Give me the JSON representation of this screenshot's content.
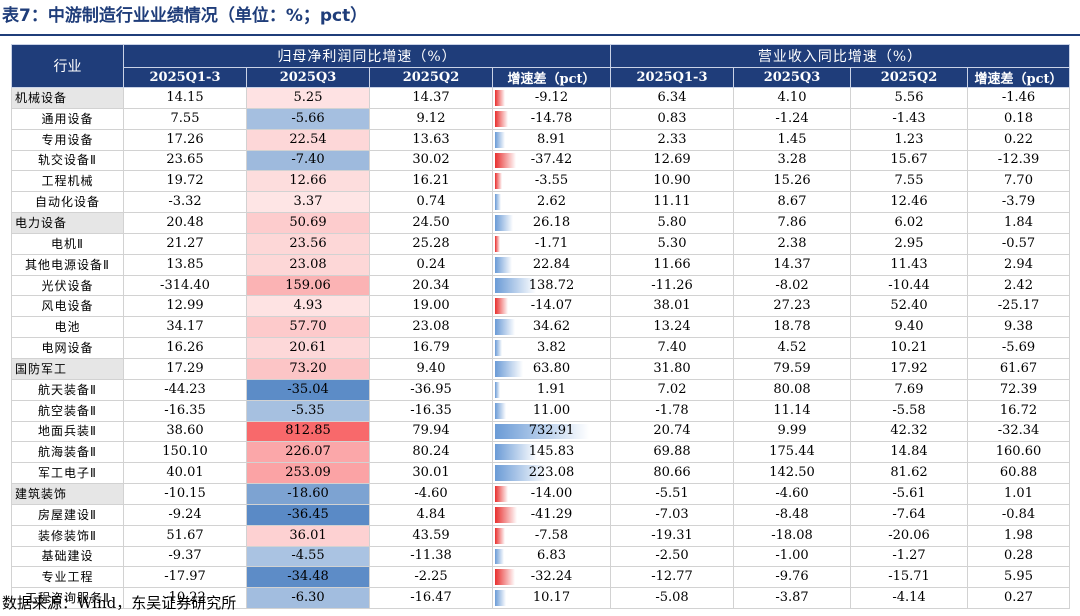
{
  "title": "表7：中游制造行业业绩情况（单位：%；pct）",
  "source": "数据来源：Wind，东吴证券研究所",
  "header": {
    "industry": "行业",
    "group1": "归母净利润同比增速（%）",
    "group2": "营业收入同比增速（%）",
    "columns": [
      "2025Q1-3",
      "2025Q3",
      "2025Q2",
      "增速差（pct）",
      "2025Q1-3",
      "2025Q3",
      "2025Q2",
      "增速差（pct）"
    ]
  },
  "colors": {
    "header_bg": "#1f3d7a",
    "level1_bg": "#e6e6e6",
    "positive_heat": "#f8696b",
    "negative_heat": "#5a8ac6",
    "pos_bar": "#6b9bd6",
    "neg_bar": "#e8302f"
  },
  "rows": [
    {
      "name": "机械设备",
      "level": 1,
      "np_q13": "14.15",
      "np_q3": "5.25",
      "np_q2": "14.37",
      "np_diff": "-9.12",
      "rev_q13": "6.34",
      "rev_q3": "4.10",
      "rev_q2": "5.56",
      "rev_diff": "-1.46"
    },
    {
      "name": "通用设备",
      "level": 2,
      "np_q13": "7.55",
      "np_q3": "-5.66",
      "np_q2": "9.12",
      "np_diff": "-14.78",
      "rev_q13": "0.83",
      "rev_q3": "-1.24",
      "rev_q2": "-1.43",
      "rev_diff": "0.18"
    },
    {
      "name": "专用设备",
      "level": 2,
      "np_q13": "17.26",
      "np_q3": "22.54",
      "np_q2": "13.63",
      "np_diff": "8.91",
      "rev_q13": "2.33",
      "rev_q3": "1.45",
      "rev_q2": "1.23",
      "rev_diff": "0.22"
    },
    {
      "name": "轨交设备Ⅱ",
      "level": 2,
      "np_q13": "23.65",
      "np_q3": "-7.40",
      "np_q2": "30.02",
      "np_diff": "-37.42",
      "rev_q13": "12.69",
      "rev_q3": "3.28",
      "rev_q2": "15.67",
      "rev_diff": "-12.39"
    },
    {
      "name": "工程机械",
      "level": 2,
      "np_q13": "19.72",
      "np_q3": "12.66",
      "np_q2": "16.21",
      "np_diff": "-3.55",
      "rev_q13": "10.90",
      "rev_q3": "15.26",
      "rev_q2": "7.55",
      "rev_diff": "7.70"
    },
    {
      "name": "自动化设备",
      "level": 2,
      "np_q13": "-3.32",
      "np_q3": "3.37",
      "np_q2": "0.74",
      "np_diff": "2.62",
      "rev_q13": "11.11",
      "rev_q3": "8.67",
      "rev_q2": "12.46",
      "rev_diff": "-3.79"
    },
    {
      "name": "电力设备",
      "level": 1,
      "np_q13": "20.48",
      "np_q3": "50.69",
      "np_q2": "24.50",
      "np_diff": "26.18",
      "rev_q13": "5.80",
      "rev_q3": "7.86",
      "rev_q2": "6.02",
      "rev_diff": "1.84"
    },
    {
      "name": "电机Ⅱ",
      "level": 2,
      "np_q13": "21.27",
      "np_q3": "23.56",
      "np_q2": "25.28",
      "np_diff": "-1.71",
      "rev_q13": "5.30",
      "rev_q3": "2.38",
      "rev_q2": "2.95",
      "rev_diff": "-0.57"
    },
    {
      "name": "其他电源设备Ⅱ",
      "level": 2,
      "np_q13": "13.85",
      "np_q3": "23.08",
      "np_q2": "0.24",
      "np_diff": "22.84",
      "rev_q13": "11.66",
      "rev_q3": "14.37",
      "rev_q2": "11.43",
      "rev_diff": "2.94"
    },
    {
      "name": "光伏设备",
      "level": 2,
      "np_q13": "-314.40",
      "np_q3": "159.06",
      "np_q2": "20.34",
      "np_diff": "138.72",
      "rev_q13": "-11.26",
      "rev_q3": "-8.02",
      "rev_q2": "-10.44",
      "rev_diff": "2.42"
    },
    {
      "name": "风电设备",
      "level": 2,
      "np_q13": "12.99",
      "np_q3": "4.93",
      "np_q2": "19.00",
      "np_diff": "-14.07",
      "rev_q13": "38.01",
      "rev_q3": "27.23",
      "rev_q2": "52.40",
      "rev_diff": "-25.17"
    },
    {
      "name": "电池",
      "level": 2,
      "np_q13": "34.17",
      "np_q3": "57.70",
      "np_q2": "23.08",
      "np_diff": "34.62",
      "rev_q13": "13.24",
      "rev_q3": "18.78",
      "rev_q2": "9.40",
      "rev_diff": "9.38"
    },
    {
      "name": "电网设备",
      "level": 2,
      "np_q13": "16.26",
      "np_q3": "20.61",
      "np_q2": "16.79",
      "np_diff": "3.82",
      "rev_q13": "7.40",
      "rev_q3": "4.52",
      "rev_q2": "10.21",
      "rev_diff": "-5.69"
    },
    {
      "name": "国防军工",
      "level": 1,
      "np_q13": "17.29",
      "np_q3": "73.20",
      "np_q2": "9.40",
      "np_diff": "63.80",
      "rev_q13": "31.80",
      "rev_q3": "79.59",
      "rev_q2": "17.92",
      "rev_diff": "61.67"
    },
    {
      "name": "航天装备Ⅱ",
      "level": 2,
      "np_q13": "-44.23",
      "np_q3": "-35.04",
      "np_q2": "-36.95",
      "np_diff": "1.91",
      "rev_q13": "7.02",
      "rev_q3": "80.08",
      "rev_q2": "7.69",
      "rev_diff": "72.39"
    },
    {
      "name": "航空装备Ⅱ",
      "level": 2,
      "np_q13": "-16.35",
      "np_q3": "-5.35",
      "np_q2": "-16.35",
      "np_diff": "11.00",
      "rev_q13": "-1.78",
      "rev_q3": "11.14",
      "rev_q2": "-5.58",
      "rev_diff": "16.72"
    },
    {
      "name": "地面兵装Ⅱ",
      "level": 2,
      "np_q13": "38.60",
      "np_q3": "812.85",
      "np_q2": "79.94",
      "np_diff": "732.91",
      "rev_q13": "20.74",
      "rev_q3": "9.99",
      "rev_q2": "42.32",
      "rev_diff": "-32.34"
    },
    {
      "name": "航海装备Ⅱ",
      "level": 2,
      "np_q13": "150.10",
      "np_q3": "226.07",
      "np_q2": "80.24",
      "np_diff": "145.83",
      "rev_q13": "69.88",
      "rev_q3": "175.44",
      "rev_q2": "14.84",
      "rev_diff": "160.60"
    },
    {
      "name": "军工电子Ⅱ",
      "level": 2,
      "np_q13": "40.01",
      "np_q3": "253.09",
      "np_q2": "30.01",
      "np_diff": "223.08",
      "rev_q13": "80.66",
      "rev_q3": "142.50",
      "rev_q2": "81.62",
      "rev_diff": "60.88"
    },
    {
      "name": "建筑装饰",
      "level": 1,
      "np_q13": "-10.15",
      "np_q3": "-18.60",
      "np_q2": "-4.60",
      "np_diff": "-14.00",
      "rev_q13": "-5.51",
      "rev_q3": "-4.60",
      "rev_q2": "-5.61",
      "rev_diff": "1.01"
    },
    {
      "name": "房屋建设Ⅱ",
      "level": 2,
      "np_q13": "-9.24",
      "np_q3": "-36.45",
      "np_q2": "4.84",
      "np_diff": "-41.29",
      "rev_q13": "-7.03",
      "rev_q3": "-8.48",
      "rev_q2": "-7.64",
      "rev_diff": "-0.84"
    },
    {
      "name": "装修装饰Ⅱ",
      "level": 2,
      "np_q13": "51.67",
      "np_q3": "36.01",
      "np_q2": "43.59",
      "np_diff": "-7.58",
      "rev_q13": "-19.31",
      "rev_q3": "-18.08",
      "rev_q2": "-20.06",
      "rev_diff": "1.98"
    },
    {
      "name": "基础建设",
      "level": 2,
      "np_q13": "-9.37",
      "np_q3": "-4.55",
      "np_q2": "-11.38",
      "np_diff": "6.83",
      "rev_q13": "-2.50",
      "rev_q3": "-1.00",
      "rev_q2": "-1.27",
      "rev_diff": "0.28"
    },
    {
      "name": "专业工程",
      "level": 2,
      "np_q13": "-17.97",
      "np_q3": "-34.48",
      "np_q2": "-2.25",
      "np_diff": "-32.24",
      "rev_q13": "-12.77",
      "rev_q3": "-9.76",
      "rev_q2": "-15.71",
      "rev_diff": "5.95"
    },
    {
      "name": "工程咨询服务Ⅱ",
      "level": 2,
      "np_q13": "-10.22",
      "np_q3": "-6.30",
      "np_q2": "-16.47",
      "np_diff": "10.17",
      "rev_q13": "-5.08",
      "rev_q3": "-3.87",
      "rev_q2": "-4.14",
      "rev_diff": "0.27"
    }
  ]
}
